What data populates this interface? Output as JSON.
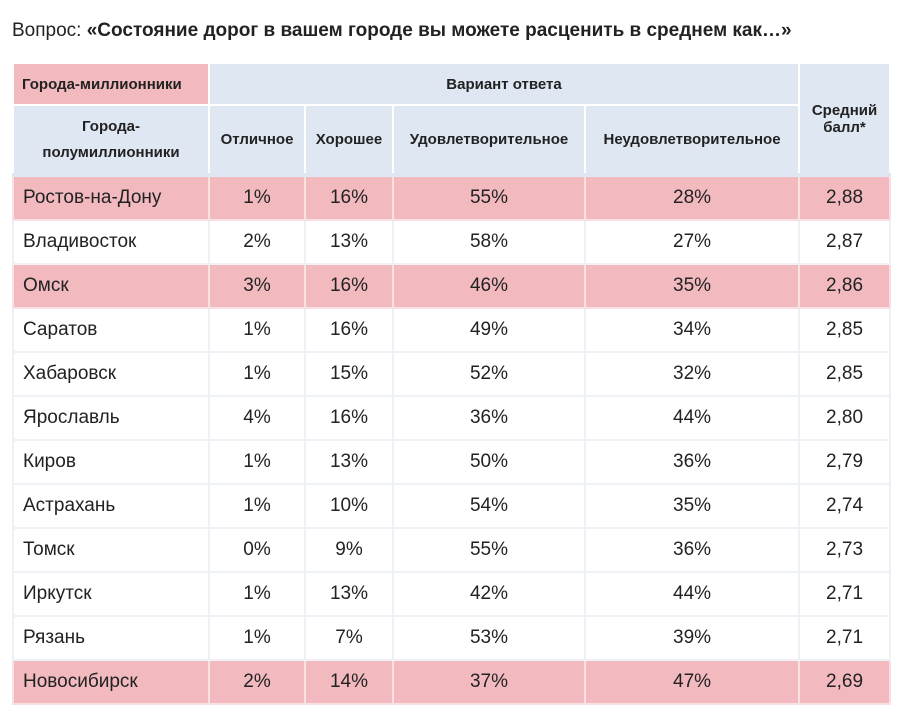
{
  "question": {
    "prefix": "Вопрос: ",
    "text": "«Состояние дорог в вашем городе вы можете расценить в среднем как…»"
  },
  "table": {
    "header_million": "Города-миллионники",
    "header_half_million": "Города-полумиллионники",
    "header_variant": "Вариант ответа",
    "header_score": "Средний балл*",
    "columns": [
      "Отличное",
      "Хорошее",
      "Удовлетворительное",
      "Неудовлетворительное"
    ],
    "highlight_color": "#f2babf",
    "header_color": "#dfe7f3",
    "rows": [
      {
        "city": "Ростов-на-Дону",
        "v": [
          "1%",
          "16%",
          "55%",
          "28%"
        ],
        "score": "2,88",
        "million": true
      },
      {
        "city": "Владивосток",
        "v": [
          "2%",
          "13%",
          "58%",
          "27%"
        ],
        "score": "2,87",
        "million": false
      },
      {
        "city": "Омск",
        "v": [
          "3%",
          "16%",
          "46%",
          "35%"
        ],
        "score": "2,86",
        "million": true
      },
      {
        "city": "Саратов",
        "v": [
          "1%",
          "16%",
          "49%",
          "34%"
        ],
        "score": "2,85",
        "million": false
      },
      {
        "city": "Хабаровск",
        "v": [
          "1%",
          "15%",
          "52%",
          "32%"
        ],
        "score": "2,85",
        "million": false
      },
      {
        "city": "Ярославль",
        "v": [
          "4%",
          "16%",
          "36%",
          "44%"
        ],
        "score": "2,80",
        "million": false
      },
      {
        "city": "Киров",
        "v": [
          "1%",
          "13%",
          "50%",
          "36%"
        ],
        "score": "2,79",
        "million": false
      },
      {
        "city": "Астрахань",
        "v": [
          "1%",
          "10%",
          "54%",
          "35%"
        ],
        "score": "2,74",
        "million": false
      },
      {
        "city": "Томск",
        "v": [
          "0%",
          "9%",
          "55%",
          "36%"
        ],
        "score": "2,73",
        "million": false
      },
      {
        "city": "Иркутск",
        "v": [
          "1%",
          "13%",
          "42%",
          "44%"
        ],
        "score": "2,71",
        "million": false
      },
      {
        "city": "Рязань",
        "v": [
          "1%",
          "7%",
          "53%",
          "39%"
        ],
        "score": "2,71",
        "million": false
      },
      {
        "city": "Новосибирск",
        "v": [
          "2%",
          "14%",
          "37%",
          "47%"
        ],
        "score": "2,69",
        "million": true
      }
    ]
  }
}
